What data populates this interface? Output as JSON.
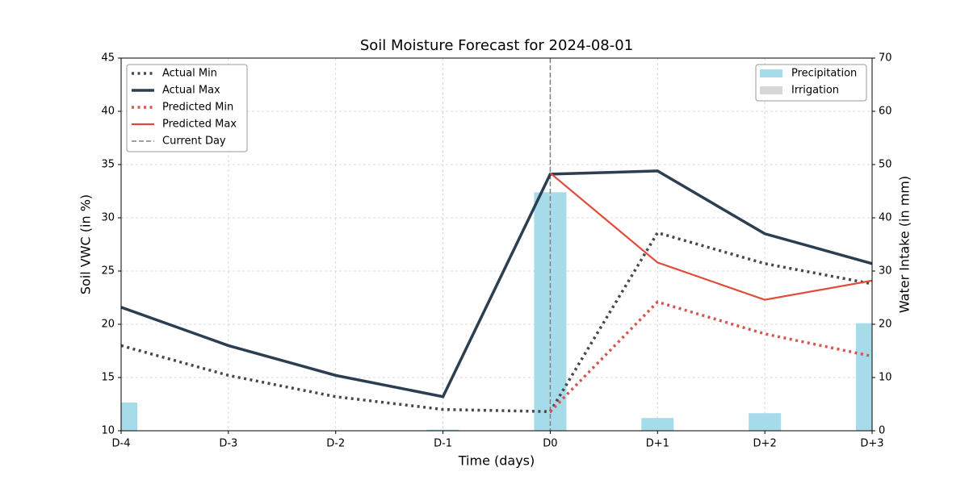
{
  "chart_data": {
    "type": "line",
    "title": "Soil Moisture Forecast for 2024-08-01",
    "x_label": "Time (days)",
    "y_label": "Soil VWC (in %)",
    "y2_label": "Water Intake (in mm)",
    "categories": [
      "D-4",
      "D-3",
      "D-2",
      "D-1",
      "D0",
      "D+1",
      "D+2",
      "D+3"
    ],
    "ylim": [
      10,
      45
    ],
    "yticks": [
      10,
      15,
      20,
      25,
      30,
      35,
      40,
      45
    ],
    "y2lim": [
      0,
      70
    ],
    "y2ticks": [
      0,
      10,
      20,
      30,
      40,
      50,
      60,
      70
    ],
    "grid": true,
    "legend": "upper left",
    "legend2": "upper right",
    "series": [
      {
        "name": "Actual Min",
        "type": "line",
        "color": "#474747",
        "style": "dotted",
        "width": 3.5,
        "values": [
          18.0,
          15.2,
          13.2,
          12.0,
          11.8,
          28.6,
          25.7,
          23.8
        ]
      },
      {
        "name": "Actual Max",
        "type": "line",
        "color": "#2c3e50",
        "style": "solid",
        "width": 3.5,
        "values": [
          21.6,
          18.0,
          15.2,
          13.2,
          34.1,
          34.4,
          28.5,
          25.7
        ]
      },
      {
        "name": "Predicted Min",
        "type": "line",
        "color": "#d9534f",
        "style": "dotted",
        "width": 3.5,
        "values": [
          null,
          null,
          null,
          null,
          11.8,
          22.1,
          19.1,
          17.0
        ]
      },
      {
        "name": "Predicted Max",
        "type": "line",
        "color": "#e04b3a",
        "style": "solid",
        "width": 2.2,
        "values": [
          null,
          null,
          null,
          null,
          34.2,
          25.8,
          22.3,
          24.1
        ]
      },
      {
        "name": "Precipitation",
        "type": "bar",
        "axis": "y2",
        "color": "#a6dcea",
        "values": [
          5.3,
          0,
          0,
          0.2,
          44.8,
          2.4,
          3.3,
          20.2
        ]
      },
      {
        "name": "Irrigation",
        "type": "bar",
        "axis": "y2",
        "color": "#d6d6d6",
        "values": [
          0,
          0,
          0,
          0,
          0,
          0,
          0,
          0
        ]
      }
    ],
    "vlines": [
      {
        "name": "Current Day",
        "x": "D0",
        "color": "#808080",
        "style": "dashed"
      }
    ]
  }
}
